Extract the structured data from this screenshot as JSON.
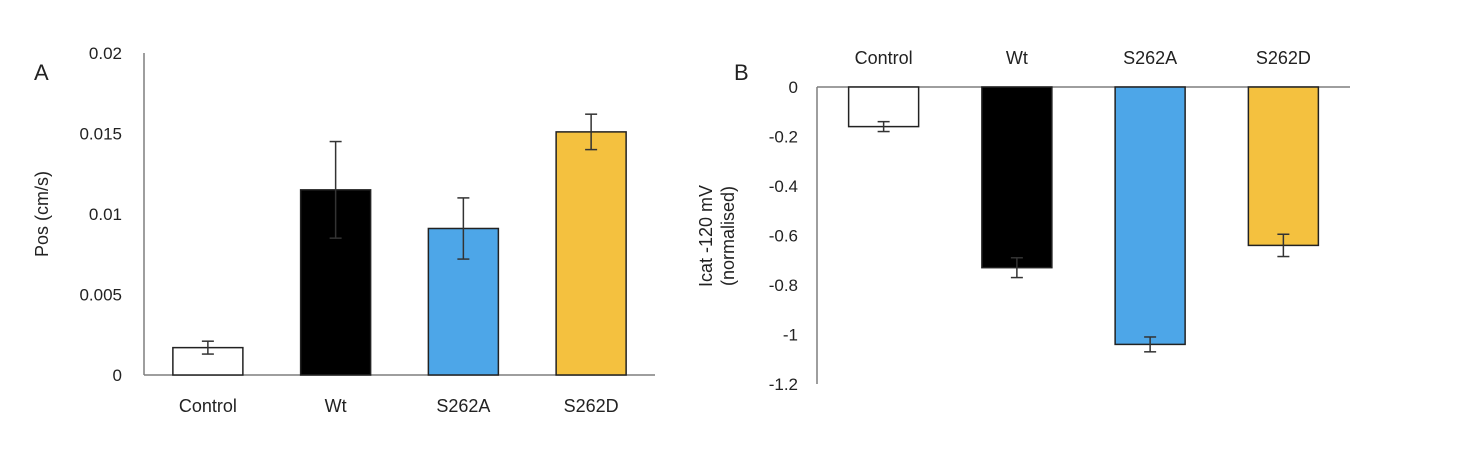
{
  "chart_data": [
    {
      "panel_label": "A",
      "type": "bar",
      "categories": [
        "Control",
        "Wt",
        "S262A",
        "S262D"
      ],
      "values": [
        0.0017,
        0.0115,
        0.0091,
        0.0151
      ],
      "errors": [
        0.0004,
        0.003,
        0.0019,
        0.0011
      ],
      "colors": [
        "#ffffff",
        "#000000",
        "#4da6e8",
        "#f4c13f"
      ],
      "ylabel": "Pos (cm/s)",
      "ylim": [
        0,
        0.02
      ],
      "yticks": [
        0,
        0.005,
        0.01,
        0.015,
        0.02
      ],
      "ytick_labels": [
        "0",
        "0.005",
        "0.01",
        "0.015",
        "0.02"
      ],
      "grid": false
    },
    {
      "panel_label": "B",
      "type": "bar",
      "categories": [
        "Control",
        "Wt",
        "S262A",
        "S262D"
      ],
      "values": [
        -0.16,
        -0.73,
        -1.04,
        -0.64
      ],
      "errors": [
        0.02,
        0.04,
        0.03,
        0.045
      ],
      "colors": [
        "#ffffff",
        "#000000",
        "#4da6e8",
        "#f4c13f"
      ],
      "ylabel": [
        "Icat -120 mV",
        "(normalised)"
      ],
      "ylim": [
        -1.2,
        0
      ],
      "yticks": [
        0,
        -0.2,
        -0.4,
        -0.6,
        -0.8,
        -1,
        -1.2
      ],
      "ytick_labels": [
        "0",
        "-0.2",
        "-0.4",
        "-0.6",
        "-0.8",
        "-1",
        "-1.2"
      ],
      "category_labels_position": "top",
      "grid": false
    }
  ]
}
